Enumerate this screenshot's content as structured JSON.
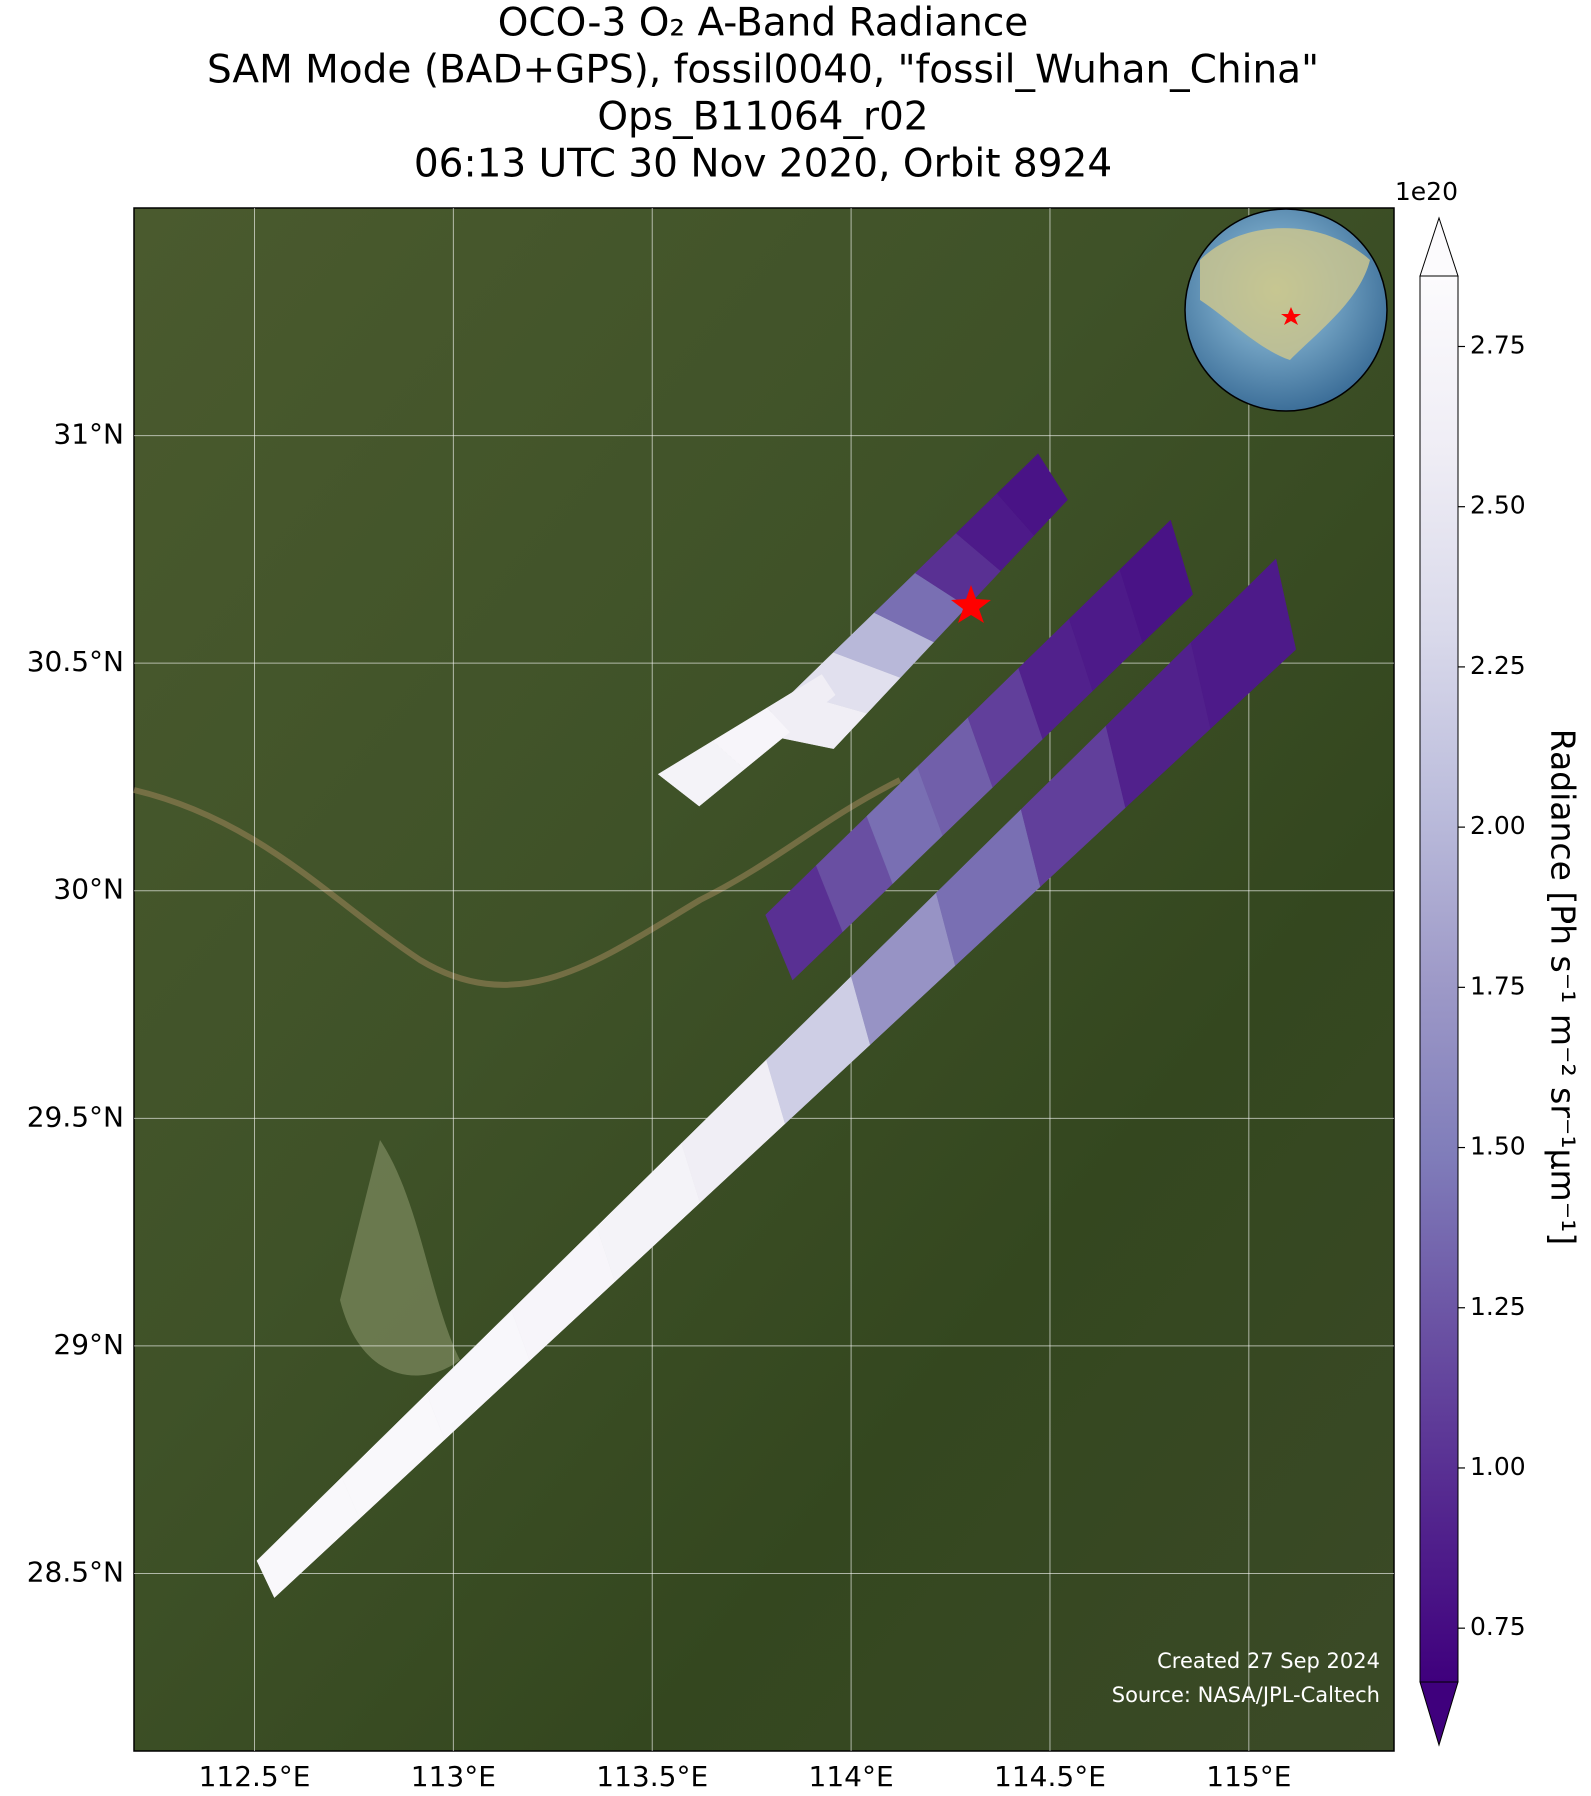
{
  "chart_data": {
    "type": "swath-map",
    "title": [
      "OCO-3 O₂ A-Band Radiance",
      "SAM Mode (BAD+GPS), fossil0040, \"fossil_Wuhan_China\"",
      "Ops_B11064_r02",
      "06:13 UTC 30 Nov 2020, Orbit 8924"
    ],
    "xlim": [
      112.197,
      115.365
    ],
    "ylim": [
      28.11,
      31.5
    ],
    "xticks": [
      {
        "value": 112.5,
        "label": "112.5°E"
      },
      {
        "value": 113,
        "label": "113°E"
      },
      {
        "value": 113.5,
        "label": "113.5°E"
      },
      {
        "value": 114,
        "label": "114°E"
      },
      {
        "value": 114.5,
        "label": "114.5°E"
      },
      {
        "value": 115,
        "label": "115°E"
      }
    ],
    "yticks": [
      {
        "value": 28.5,
        "label": "28.5°N"
      },
      {
        "value": 29,
        "label": "29°N"
      },
      {
        "value": 29.5,
        "label": "29.5°N"
      },
      {
        "value": 30,
        "label": "30°N"
      },
      {
        "value": 30.5,
        "label": "30.5°N"
      },
      {
        "value": 31,
        "label": "31°N"
      }
    ],
    "grid": true,
    "colorbar": {
      "label": "Radiance [Ph s⁻¹ m⁻² sr⁻¹μm⁻¹]",
      "scale_label": "1e20",
      "lim": [
        0.666,
        2.86
      ],
      "ticks": [
        0.75,
        {
          "value": 1,
          "label": "1.00"
        },
        1.25,
        {
          "value": 1.5,
          "label": "1.50"
        },
        1.75,
        {
          "value": 2,
          "label": "2.00"
        },
        2.25,
        {
          "value": 2.5,
          "label": "2.50"
        },
        2.75
      ],
      "colormap": [
        "#3f007d",
        "#54278f",
        "#6a51a3",
        "#807dba",
        "#9e9ac8",
        "#bcbddc",
        "#dadaeb",
        "#efedf5",
        "#fcfbfd"
      ]
    },
    "swaths": [
      {
        "start": [
          [
            112.506,
            28.528
          ],
          [
            112.55,
            28.447
          ]
        ],
        "end": [
          [
            115.068,
            30.729
          ],
          [
            115.118,
            30.53
          ]
        ],
        "values": [
          2.8,
          2.8,
          2.78,
          2.75,
          2.7,
          2.6,
          2.2,
          1.7,
          1.4,
          1.1,
          0.9,
          0.85
        ]
      },
      {
        "start": [
          [
            113.785,
            29.947
          ],
          [
            113.853,
            29.804
          ]
        ],
        "end": [
          [
            114.803,
            30.814
          ],
          [
            114.859,
            30.651
          ]
        ],
        "values": [
          1.0,
          1.2,
          1.4,
          1.3,
          1.1,
          0.9,
          0.85,
          0.8
        ]
      },
      {
        "start": [
          [
            113.75,
            30.349
          ],
          [
            113.956,
            30.312
          ]
        ],
        "end": [
          [
            114.47,
            30.96
          ],
          [
            114.544,
            30.859
          ]
        ],
        "values": [
          2.6,
          2.4,
          2.0,
          1.4,
          1.0,
          0.85,
          0.8
        ]
      },
      {
        "start": [
          [
            113.515,
            30.256
          ],
          [
            113.618,
            30.186
          ]
        ],
        "end": [
          [
            113.926,
            30.475
          ],
          [
            113.96,
            30.43
          ]
        ],
        "values": [
          2.7,
          2.75,
          2.6
        ]
      }
    ],
    "credits": [
      "Created 27 Sep 2024",
      "Source: NASA/JPL-Caltech"
    ]
  }
}
